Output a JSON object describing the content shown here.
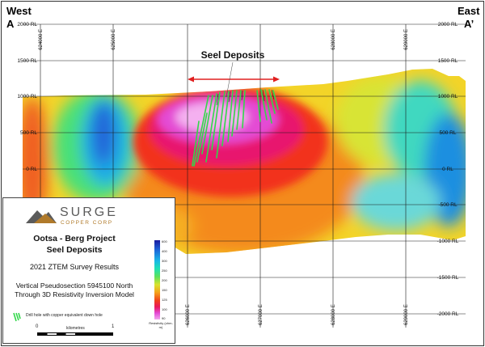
{
  "corners": {
    "west": "West",
    "a": "A",
    "east": "East",
    "a_prime": "A’"
  },
  "annotation": {
    "label": "Seel Deposits",
    "arrow_color": "#e02020"
  },
  "elevation_labels": {
    "left": [
      "2000 RL",
      "1500 RL",
      "1000 RL",
      "500 RL",
      "0 RL"
    ],
    "right": [
      "2000 RL",
      "1500 RL",
      "1000 RL",
      "500 RL",
      "0 RL",
      "-500 RL",
      "-1000 RL",
      "-1500 RL",
      "-2000 RL"
    ]
  },
  "easting_labels": {
    "top": [
      "624000 E",
      "625000 E",
      "628000 E",
      "629000 E"
    ],
    "bottom": [
      "626000 E",
      "627000 E",
      "628000 E",
      "629000 E"
    ]
  },
  "legend": {
    "brand": "SURGE",
    "brand_sub": "COPPER CORP",
    "project": "Ootsa - Berg Project",
    "deposit": "Seel Deposits",
    "survey": "2021 ZTEM Survey Results",
    "section_line1": "Vertical Pseudosection 5945100 North",
    "section_line2": "Through 3D Resistivity Inversion Model",
    "drill_legend": "Drill hole with copper equivalent down hole",
    "scale_labels": [
      "0",
      "1"
    ],
    "scale_units": "kilometres",
    "colorbar_ticks": [
      "600",
      "400",
      "300",
      "250",
      "200",
      "150",
      "125",
      "100",
      "90"
    ],
    "colorbar_label": "Resistivity (ohm-m)"
  },
  "colors": {
    "low_resistivity": "#e34bd6",
    "high_resistivity": "#1a1aa0",
    "drill_hole": "#32d84a",
    "logo_gold": "#b07a2a"
  }
}
